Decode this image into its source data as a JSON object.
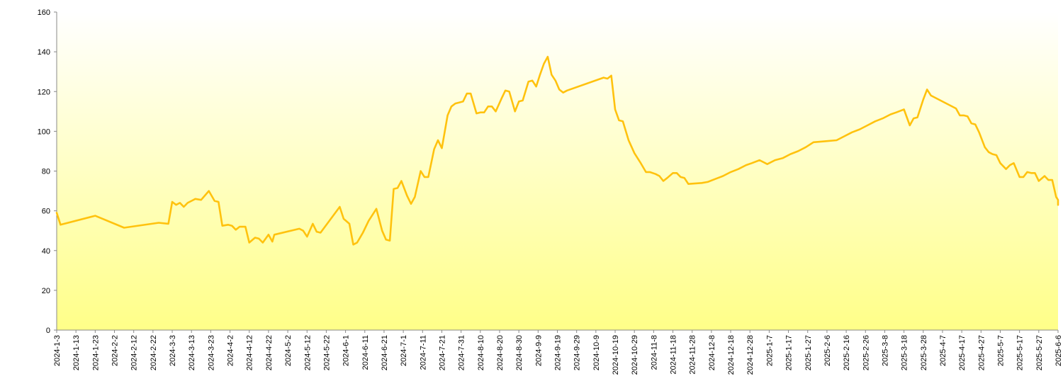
{
  "chart_data": {
    "type": "area",
    "title": "",
    "xlabel": "",
    "ylabel": "",
    "ylim": [
      0,
      160
    ],
    "y_ticks": [
      "0",
      "20",
      "40",
      "60",
      "80",
      "100",
      "120",
      "140",
      "160"
    ],
    "x_start": "2024-1-3",
    "x_end": "2025-6-6",
    "x_tick_labels": [
      "2024-1-3",
      "2024-1-13",
      "2024-1-23",
      "2024-2-2",
      "2024-2-12",
      "2024-2-22",
      "2024-3-3",
      "2024-3-13",
      "2024-3-23",
      "2024-4-2",
      "2024-4-12",
      "2024-4-22",
      "2024-5-2",
      "2024-5-12",
      "2024-5-22",
      "2024-6-1",
      "2024-6-11",
      "2024-6-21",
      "2024-7-1",
      "2024-7-11",
      "2024-7-21",
      "2024-7-31",
      "2024-8-10",
      "2024-8-20",
      "2024-8-30",
      "2024-9-9",
      "2024-9-19",
      "2024-9-29",
      "2024-10-9",
      "2024-10-19",
      "2024-10-29",
      "2024-11-8",
      "2024-11-18",
      "2024-11-28",
      "2024-12-8",
      "2024-12-18",
      "2024-12-28",
      "2025-1-7",
      "2025-1-17",
      "2025-1-27",
      "2025-2-6",
      "2025-2-16",
      "2025-2-26",
      "2025-3-8",
      "2025-3-18",
      "2025-3-28",
      "2025-4-7",
      "2025-4-17",
      "2025-4-27",
      "2025-5-7",
      "2025-5-17",
      "2025-5-27",
      "2025-6-6"
    ],
    "grid": false,
    "legend": "none",
    "line_color": "#FFC20E",
    "fill_top_color": "#FFFFFF",
    "fill_bottom_color": "#FFFF88",
    "series": [
      {
        "values": [
          [
            "2024-1-3",
            59
          ],
          [
            "2024-1-5",
            53
          ],
          [
            "2024-1-23",
            57.5
          ],
          [
            "2024-2-7",
            51.5
          ],
          [
            "2024-2-25",
            54
          ],
          [
            "2024-3-1",
            53.5
          ],
          [
            "2024-3-3",
            64.5
          ],
          [
            "2024-3-5",
            63
          ],
          [
            "2024-3-7",
            64
          ],
          [
            "2024-3-9",
            62
          ],
          [
            "2024-3-11",
            64
          ],
          [
            "2024-3-13",
            65
          ],
          [
            "2024-3-15",
            66
          ],
          [
            "2024-3-18",
            65.5
          ],
          [
            "2024-3-22",
            70
          ],
          [
            "2024-3-25",
            65
          ],
          [
            "2024-3-27",
            64.5
          ],
          [
            "2024-3-29",
            52.5
          ],
          [
            "2024-4-1",
            53
          ],
          [
            "2024-4-3",
            52.5
          ],
          [
            "2024-4-5",
            50.5
          ],
          [
            "2024-4-7",
            52
          ],
          [
            "2024-4-10",
            52
          ],
          [
            "2024-4-12",
            44
          ],
          [
            "2024-4-15",
            46.5
          ],
          [
            "2024-4-17",
            46
          ],
          [
            "2024-4-19",
            44
          ],
          [
            "2024-4-22",
            48
          ],
          [
            "2024-4-24",
            44.5
          ],
          [
            "2024-4-25",
            48
          ],
          [
            "2024-5-8",
            51
          ],
          [
            "2024-5-10",
            50
          ],
          [
            "2024-5-12",
            47
          ],
          [
            "2024-5-15",
            53.5
          ],
          [
            "2024-5-17",
            49.5
          ],
          [
            "2024-5-19",
            49
          ],
          [
            "2024-5-29",
            62
          ],
          [
            "2024-5-31",
            56
          ],
          [
            "2024-6-3",
            53.5
          ],
          [
            "2024-6-5",
            43
          ],
          [
            "2024-6-7",
            44
          ],
          [
            "2024-6-10",
            49
          ],
          [
            "2024-6-13",
            55
          ],
          [
            "2024-6-17",
            61
          ],
          [
            "2024-6-20",
            50
          ],
          [
            "2024-6-22",
            45.5
          ],
          [
            "2024-6-24",
            45
          ],
          [
            "2024-6-26",
            71
          ],
          [
            "2024-6-28",
            71.5
          ],
          [
            "2024-6-30",
            75
          ],
          [
            "2024-7-3",
            67.5
          ],
          [
            "2024-7-5",
            63.5
          ],
          [
            "2024-7-7",
            67
          ],
          [
            "2024-7-10",
            80
          ],
          [
            "2024-7-12",
            77
          ],
          [
            "2024-7-14",
            77
          ],
          [
            "2024-7-17",
            91
          ],
          [
            "2024-7-19",
            95.5
          ],
          [
            "2024-7-21",
            91.5
          ],
          [
            "2024-7-24",
            108
          ],
          [
            "2024-7-26",
            112.5
          ],
          [
            "2024-7-28",
            114
          ],
          [
            "2024-7-30",
            114.5
          ],
          [
            "2024-8-1",
            115
          ],
          [
            "2024-8-3",
            119
          ],
          [
            "2024-8-5",
            119
          ],
          [
            "2024-8-8",
            109
          ],
          [
            "2024-8-10",
            109.5
          ],
          [
            "2024-8-12",
            109.5
          ],
          [
            "2024-8-14",
            112.5
          ],
          [
            "2024-8-16",
            112.5
          ],
          [
            "2024-8-18",
            110
          ],
          [
            "2024-8-21",
            116.5
          ],
          [
            "2024-8-23",
            120.5
          ],
          [
            "2024-8-25",
            120
          ],
          [
            "2024-8-28",
            110
          ],
          [
            "2024-8-30",
            115
          ],
          [
            "2024-9-1",
            115.5
          ],
          [
            "2024-9-4",
            125
          ],
          [
            "2024-9-6",
            125.5
          ],
          [
            "2024-9-8",
            122.5
          ],
          [
            "2024-9-10",
            128.5
          ],
          [
            "2024-9-12",
            134
          ],
          [
            "2024-9-14",
            137.5
          ],
          [
            "2024-9-16",
            128.5
          ],
          [
            "2024-9-18",
            125.5
          ],
          [
            "2024-9-20",
            121
          ],
          [
            "2024-9-22",
            119.5
          ],
          [
            "2024-9-24",
            120.5
          ],
          [
            "2024-10-13",
            127
          ],
          [
            "2024-10-15",
            126.5
          ],
          [
            "2024-10-17",
            128
          ],
          [
            "2024-10-19",
            111
          ],
          [
            "2024-10-21",
            105.5
          ],
          [
            "2024-10-23",
            105
          ],
          [
            "2024-10-26",
            95.5
          ],
          [
            "2024-10-29",
            89
          ],
          [
            "2024-11-1",
            84.5
          ],
          [
            "2024-11-4",
            79.5
          ],
          [
            "2024-11-6",
            79.5
          ],
          [
            "2024-11-9",
            78.5
          ],
          [
            "2024-11-11",
            77.5
          ],
          [
            "2024-11-13",
            75
          ],
          [
            "2024-11-15",
            76.5
          ],
          [
            "2024-11-18",
            79
          ],
          [
            "2024-11-20",
            79
          ],
          [
            "2024-11-22",
            77
          ],
          [
            "2024-11-24",
            76.5
          ],
          [
            "2024-11-26",
            73.5
          ],
          [
            "2024-12-3",
            74
          ],
          [
            "2024-12-6",
            74.5
          ],
          [
            "2024-12-10",
            76
          ],
          [
            "2024-12-14",
            77.5
          ],
          [
            "2024-12-18",
            79.5
          ],
          [
            "2024-12-22",
            81
          ],
          [
            "2024-12-26",
            83
          ],
          [
            "2024-12-29",
            84
          ],
          [
            "2025-1-2",
            85.5
          ],
          [
            "2025-1-6",
            83.5
          ],
          [
            "2025-1-10",
            85.5
          ],
          [
            "2025-1-14",
            86.5
          ],
          [
            "2025-1-18",
            88.5
          ],
          [
            "2025-1-22",
            90
          ],
          [
            "2025-1-26",
            92
          ],
          [
            "2025-1-30",
            94.5
          ],
          [
            "2025-2-5",
            95
          ],
          [
            "2025-2-11",
            95.5
          ],
          [
            "2025-2-15",
            97.5
          ],
          [
            "2025-2-19",
            99.5
          ],
          [
            "2025-2-23",
            101
          ],
          [
            "2025-2-27",
            103
          ],
          [
            "2025-3-3",
            105
          ],
          [
            "2025-3-7",
            106.5
          ],
          [
            "2025-3-11",
            108.5
          ],
          [
            "2025-3-14",
            109.5
          ],
          [
            "2025-3-18",
            111
          ],
          [
            "2025-3-21",
            103
          ],
          [
            "2025-3-23",
            106.5
          ],
          [
            "2025-3-25",
            107
          ],
          [
            "2025-3-28",
            116
          ],
          [
            "2025-3-30",
            121
          ],
          [
            "2025-4-1",
            118
          ],
          [
            "2025-4-14",
            111.5
          ],
          [
            "2025-4-16",
            108
          ],
          [
            "2025-4-18",
            108
          ],
          [
            "2025-4-20",
            107.5
          ],
          [
            "2025-4-22",
            104
          ],
          [
            "2025-4-24",
            103.5
          ],
          [
            "2025-4-26",
            99.5
          ],
          [
            "2025-4-29",
            92
          ],
          [
            "2025-5-1",
            89.5
          ],
          [
            "2025-5-3",
            88.5
          ],
          [
            "2025-5-5",
            88
          ],
          [
            "2025-5-7",
            84
          ],
          [
            "2025-5-10",
            81
          ],
          [
            "2025-5-12",
            83
          ],
          [
            "2025-5-14",
            84
          ],
          [
            "2025-5-17",
            77
          ],
          [
            "2025-5-19",
            77
          ],
          [
            "2025-5-21",
            79.5
          ],
          [
            "2025-5-23",
            79
          ],
          [
            "2025-5-25",
            79
          ],
          [
            "2025-5-27",
            75
          ],
          [
            "2025-5-30",
            77.5
          ],
          [
            "2025-6-1",
            75.5
          ],
          [
            "2025-6-3",
            75.5
          ],
          [
            "2025-6-5",
            67
          ],
          [
            "2025-6-7",
            65.5
          ],
          [
            "2025-6-9",
            63
          ]
        ]
      }
    ]
  }
}
